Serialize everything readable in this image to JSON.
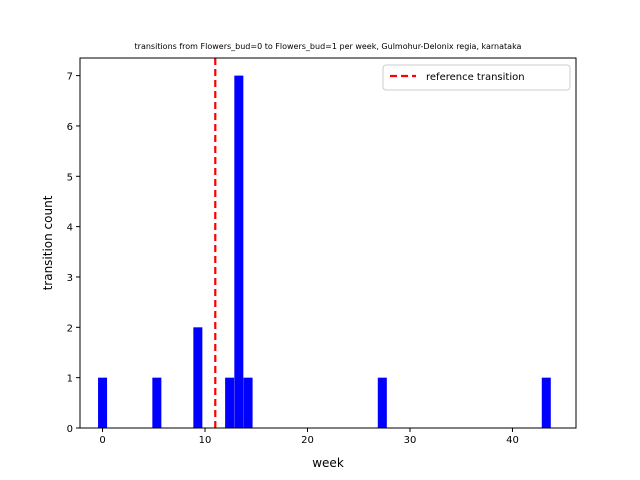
{
  "chart_data": {
    "type": "bar",
    "title": "transitions from Flowers_bud=0 to Flowers_bud=1 per week, Gulmohur-Delonix regia, karnataka",
    "xlabel": "week",
    "ylabel": "transition count",
    "xlim": [
      -2.2,
      46.2
    ],
    "ylim": [
      0,
      7.35
    ],
    "xticks": [
      0,
      10,
      20,
      30,
      40
    ],
    "yticks": [
      0,
      1,
      2,
      3,
      4,
      5,
      6,
      7
    ],
    "bar_width": 0.88,
    "bars": [
      {
        "x": 0,
        "value": 1
      },
      {
        "x": 5.3,
        "value": 1
      },
      {
        "x": 9.3,
        "value": 2
      },
      {
        "x": 12.4,
        "value": 1
      },
      {
        "x": 13.3,
        "value": 7
      },
      {
        "x": 14.2,
        "value": 1
      },
      {
        "x": 27.3,
        "value": 1
      },
      {
        "x": 43.3,
        "value": 1
      }
    ],
    "bar_color": "#0000ff",
    "reference_line": {
      "x": 11,
      "color": "#ff0000",
      "style": "dashed"
    },
    "legend": {
      "position": "top-right",
      "entries": [
        "reference transition"
      ]
    },
    "grid": false
  }
}
